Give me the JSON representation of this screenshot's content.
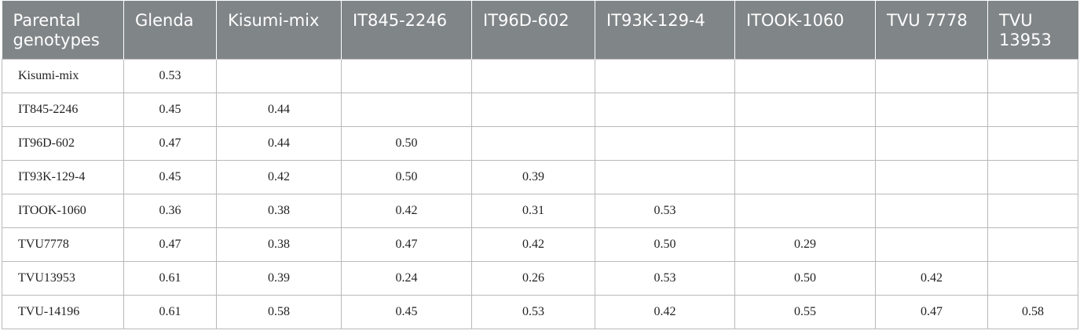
{
  "table": {
    "header": [
      "Parental genotypes",
      "Glenda",
      "Kisumi-mix",
      "IT845-2246",
      "IT96D-602",
      "IT93K-129-4",
      "ITOOK-1060",
      "TVU 7778",
      "TVU 13953"
    ],
    "rows": [
      {
        "label": "Kisumi-mix",
        "values": [
          "0.53"
        ]
      },
      {
        "label": "IT845-2246",
        "values": [
          "0.45",
          "0.44"
        ]
      },
      {
        "label": "IT96D-602",
        "values": [
          "0.47",
          "0.44",
          "0.50"
        ]
      },
      {
        "label": "IT93K-129-4",
        "values": [
          "0.45",
          "0.42",
          "0.50",
          "0.39"
        ]
      },
      {
        "label": "ITOOK-1060",
        "values": [
          "0.36",
          "0.38",
          "0.42",
          "0.31",
          "0.53"
        ]
      },
      {
        "label": "TVU7778",
        "values": [
          "0.47",
          "0.38",
          "0.47",
          "0.42",
          "0.50",
          "0.29"
        ]
      },
      {
        "label": "TVU13953",
        "values": [
          "0.61",
          "0.39",
          "0.24",
          "0.26",
          "0.53",
          "0.50",
          "0.42"
        ]
      },
      {
        "label": "TVU-14196",
        "values": [
          "0.61",
          "0.58",
          "0.45",
          "0.53",
          "0.42",
          "0.55",
          "0.47",
          "0.58"
        ]
      }
    ]
  }
}
